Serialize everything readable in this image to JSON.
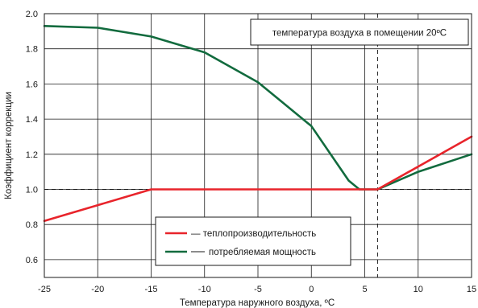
{
  "chart_data": {
    "type": "line",
    "xlabel": "Температура наружного воздуха, ºC",
    "ylabel": "Коэффициент коррекции",
    "xlim": [
      -25,
      15
    ],
    "ylim": [
      0.5,
      2.0
    ],
    "x_ticks": [
      -25,
      -20,
      -15,
      -10,
      -5,
      0,
      5,
      10,
      15
    ],
    "x_tick_labels": [
      "-25",
      "-20",
      "-15",
      "-10",
      "-5",
      "0",
      "5",
      "10",
      "15"
    ],
    "y_ticks": [
      0.6,
      0.8,
      1.0,
      1.2,
      1.4,
      1.6,
      1.8,
      2.0
    ],
    "y_tick_labels": [
      "0.6",
      "0.8",
      "1.0",
      "1.2",
      "1.4",
      "1.6",
      "1.8",
      "2.0"
    ],
    "grid": true,
    "annotation": "температура воздуха в помещении 20ºC",
    "reference_lines": [
      {
        "orientation": "horizontal",
        "y": 1.0,
        "style": "dashed"
      },
      {
        "orientation": "vertical",
        "x": 6.2,
        "style": "dashed"
      }
    ],
    "legend_position": "bottom-center",
    "series": [
      {
        "name": "— теплопроизводительность",
        "color": "#e8242b",
        "points": [
          [
            -25,
            0.82
          ],
          [
            -15,
            1.0
          ],
          [
            5.5,
            1.0
          ],
          [
            6.2,
            1.0
          ],
          [
            15,
            1.3
          ]
        ]
      },
      {
        "name": "потребляемая мощность",
        "color": "#126b3e",
        "points": [
          [
            -25,
            1.93
          ],
          [
            -20,
            1.92
          ],
          [
            -15,
            1.87
          ],
          [
            -10,
            1.78
          ],
          [
            -5,
            1.61
          ],
          [
            0,
            1.36
          ],
          [
            3.5,
            1.05
          ],
          [
            4.5,
            1.0
          ],
          [
            6.2,
            1.0
          ],
          [
            10,
            1.1
          ],
          [
            15,
            1.2
          ]
        ]
      }
    ]
  }
}
